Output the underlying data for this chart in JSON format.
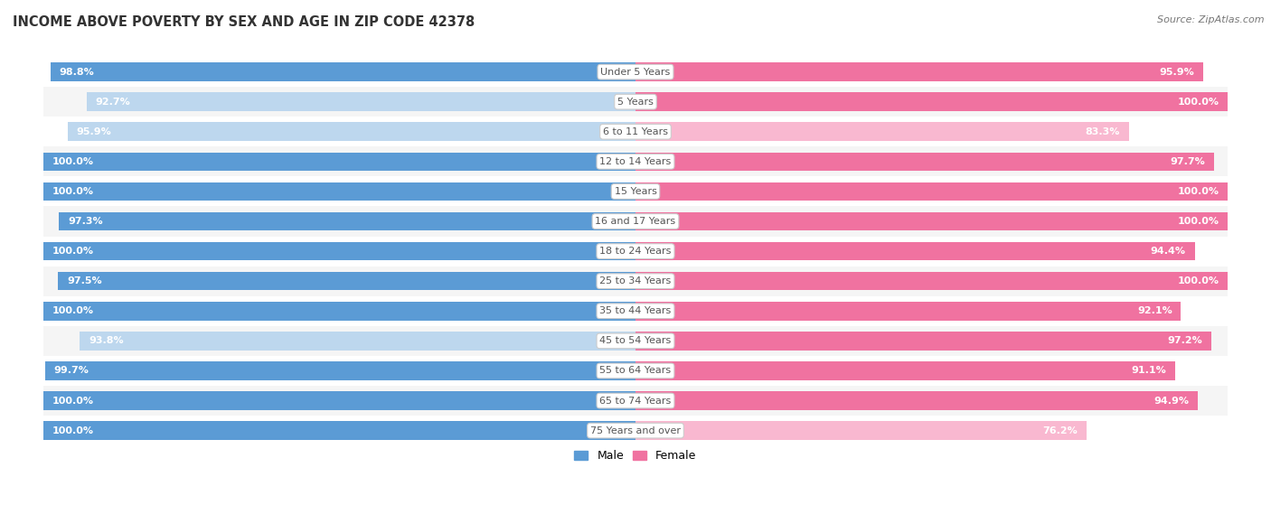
{
  "title": "INCOME ABOVE POVERTY BY SEX AND AGE IN ZIP CODE 42378",
  "source": "Source: ZipAtlas.com",
  "categories": [
    "Under 5 Years",
    "5 Years",
    "6 to 11 Years",
    "12 to 14 Years",
    "15 Years",
    "16 and 17 Years",
    "18 to 24 Years",
    "25 to 34 Years",
    "35 to 44 Years",
    "45 to 54 Years",
    "55 to 64 Years",
    "65 to 74 Years",
    "75 Years and over"
  ],
  "male": [
    98.8,
    92.7,
    95.9,
    100.0,
    100.0,
    97.3,
    100.0,
    97.5,
    100.0,
    93.8,
    99.7,
    100.0,
    100.0
  ],
  "female": [
    95.9,
    100.0,
    83.3,
    97.7,
    100.0,
    100.0,
    94.4,
    100.0,
    92.1,
    97.2,
    91.1,
    94.9,
    76.2
  ],
  "male_color_dark": "#5b9bd5",
  "male_color_light": "#bdd7ee",
  "female_color_dark": "#f072a0",
  "female_color_light": "#f9b8d0",
  "male_label": "Male",
  "female_label": "Female",
  "background_color": "#ffffff",
  "row_bg_light": "#f5f5f5",
  "row_bg_white": "#ffffff",
  "title_fontsize": 10.5,
  "source_fontsize": 8,
  "bar_label_fontsize": 8,
  "cat_label_fontsize": 8,
  "value_label_color": "#ffffff",
  "cat_label_color": "#555555"
}
